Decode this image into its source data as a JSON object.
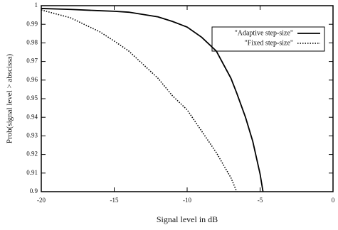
{
  "chart_data": {
    "type": "line",
    "xlabel": "Signal level in dB",
    "ylabel": "Prob(signal level > abscissa)",
    "x": [
      -20,
      -18,
      -16,
      -15,
      -14,
      -12,
      -11,
      -10,
      -9,
      -8,
      -7,
      -6.6,
      -6,
      -5.5,
      -5,
      -4.8
    ],
    "series": [
      {
        "name": "\"Adaptive step-size\"",
        "color": "#000000",
        "style": "solid",
        "values": [
          0.9985,
          0.998,
          0.9973,
          0.997,
          0.9965,
          0.994,
          0.9915,
          0.9885,
          0.983,
          0.9756,
          0.961,
          0.953,
          0.94,
          0.927,
          0.9095,
          0.9
        ]
      },
      {
        "name": "\"Fixed step-size\"",
        "color": "#000000",
        "style": "dotted",
        "values": [
          0.9977,
          0.9935,
          0.986,
          0.981,
          0.9756,
          0.961,
          0.9515,
          0.944,
          0.9325,
          0.921,
          0.9075,
          0.9,
          null,
          null,
          null,
          null
        ]
      }
    ],
    "xlim": [
      -20,
      0
    ],
    "xticks": [
      -20,
      -15,
      -10,
      -5,
      0
    ],
    "ylim": [
      0.9,
      1
    ],
    "yticks": [
      0.9,
      0.91,
      0.92,
      0.93,
      0.94,
      0.95,
      0.96,
      0.97,
      0.98,
      0.99,
      1
    ],
    "legend": "top-right"
  }
}
